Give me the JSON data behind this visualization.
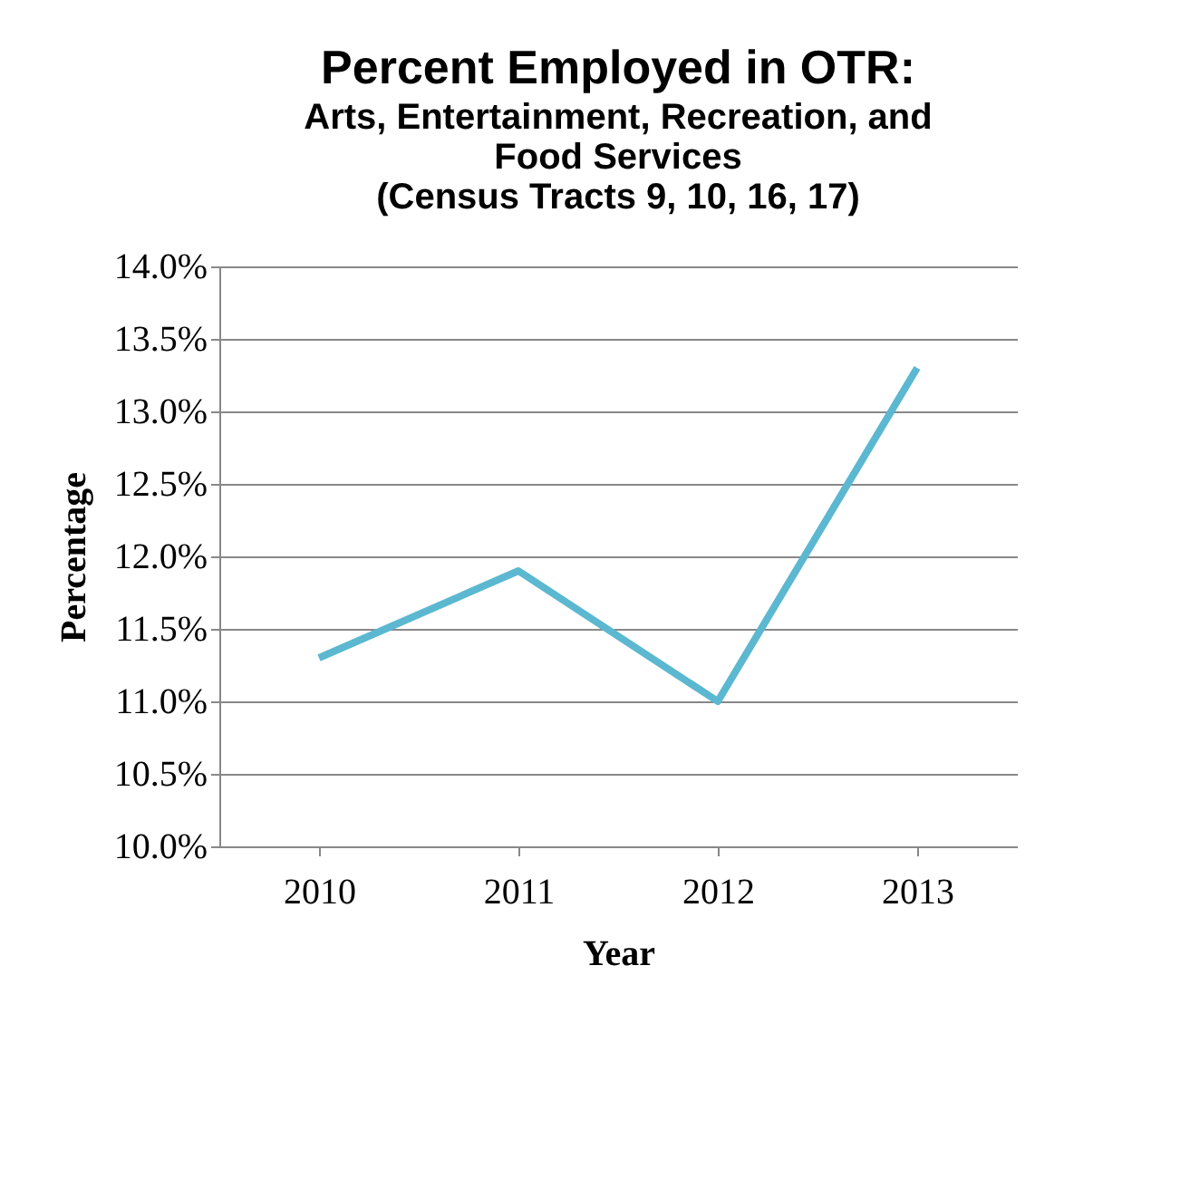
{
  "chart_data": {
    "type": "line",
    "title": "Percent Employed in OTR:",
    "subtitle": "Arts, Entertainment, Recreation, and\nFood Services\n(Census Tracts 9, 10, 16, 17)",
    "xlabel": "Year",
    "ylabel": "Percentage",
    "categories": [
      "2010",
      "2011",
      "2012",
      "2013"
    ],
    "series": [
      {
        "color": "#5bb8d0",
        "values": [
          11.3,
          11.9,
          11.0,
          13.3
        ]
      }
    ],
    "ylim": [
      10.0,
      14.0
    ],
    "yticks": [
      {
        "value": 10.0,
        "label": "10.0%"
      },
      {
        "value": 10.5,
        "label": "10.5%"
      },
      {
        "value": 11.0,
        "label": "11.0%"
      },
      {
        "value": 11.5,
        "label": "11.5%"
      },
      {
        "value": 12.0,
        "label": "12.0%"
      },
      {
        "value": 12.5,
        "label": "12.5%"
      },
      {
        "value": 13.0,
        "label": "13.0%"
      },
      {
        "value": 13.5,
        "label": "13.5%"
      },
      {
        "value": 14.0,
        "label": "14.0%"
      }
    ],
    "grid": "y",
    "legend": false,
    "marker": "none",
    "line_style": "solid"
  }
}
